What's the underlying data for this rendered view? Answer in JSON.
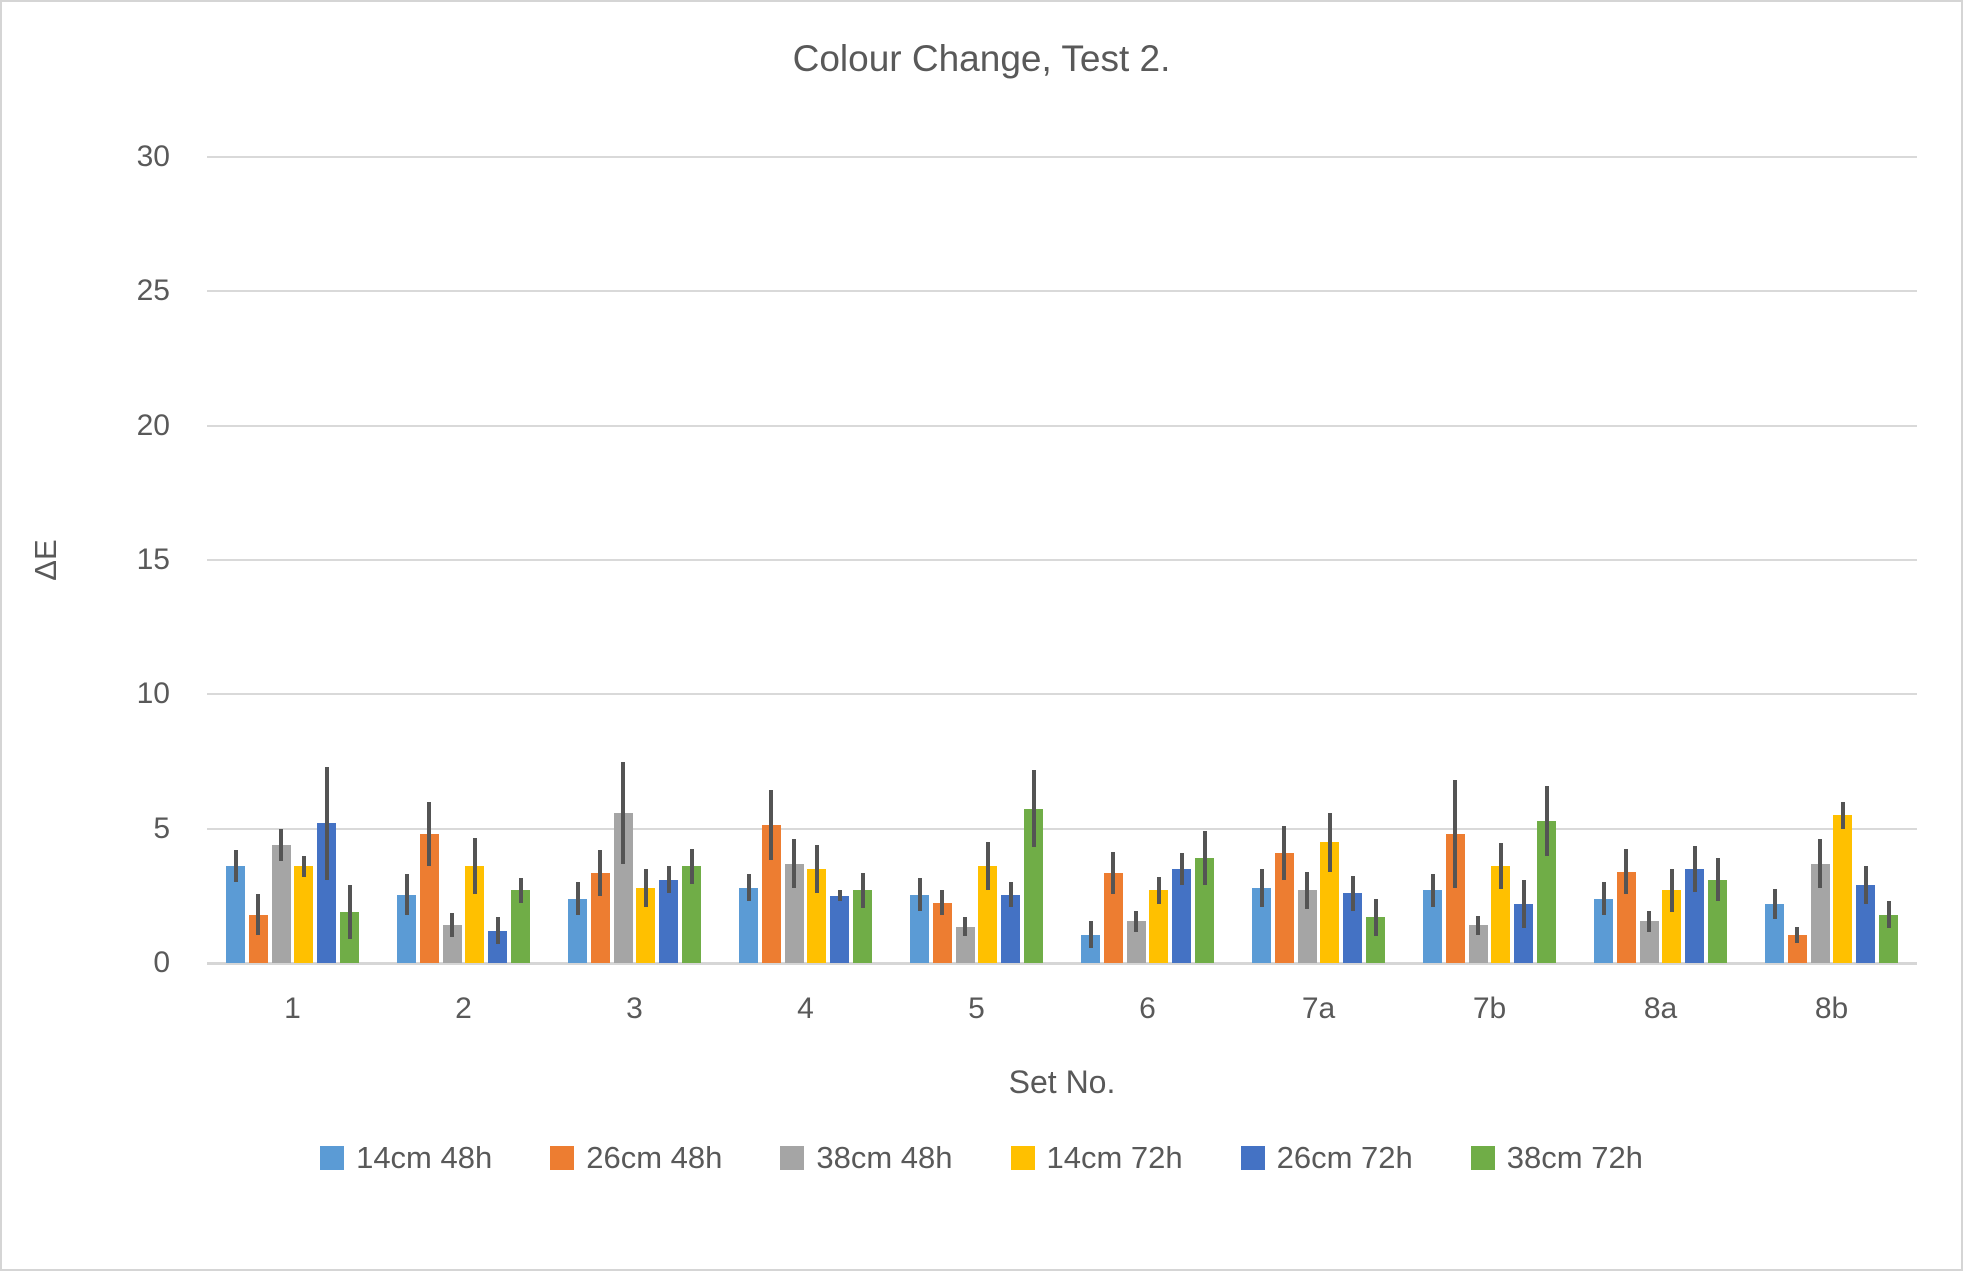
{
  "chart_data": {
    "type": "bar",
    "title": "Colour Change, Test 2.",
    "xlabel": "Set No.",
    "ylabel": "ΔE",
    "ylim": [
      0,
      30
    ],
    "yticks": [
      0,
      5,
      10,
      15,
      20,
      25,
      30
    ],
    "grid": true,
    "legend_position": "bottom",
    "error_bars": true,
    "error_bar_color": "#545454",
    "gridline_color": "#d9d9d9",
    "text_color": "#595959",
    "categories": [
      "1",
      "2",
      "3",
      "4",
      "5",
      "6",
      "7a",
      "7b",
      "8a",
      "8b"
    ],
    "series": [
      {
        "name": "14cm 48h",
        "color": "#5B9BD5",
        "values": [
          3.6,
          2.55,
          2.4,
          2.8,
          2.55,
          1.05,
          2.8,
          2.7,
          2.4,
          2.2
        ],
        "errors": [
          0.6,
          0.75,
          0.6,
          0.5,
          0.6,
          0.5,
          0.7,
          0.6,
          0.6,
          0.55
        ]
      },
      {
        "name": "26cm 48h",
        "color": "#ED7D31",
        "values": [
          1.8,
          4.8,
          3.35,
          5.15,
          2.25,
          3.35,
          4.1,
          4.8,
          3.4,
          1.05
        ],
        "errors": [
          0.75,
          1.2,
          0.85,
          1.3,
          0.45,
          0.8,
          1.0,
          2.0,
          0.85,
          0.3
        ]
      },
      {
        "name": "38cm 48h",
        "color": "#A5A5A5",
        "values": [
          4.4,
          1.4,
          5.6,
          3.7,
          1.35,
          1.55,
          2.7,
          1.4,
          1.55,
          3.7
        ],
        "errors": [
          0.6,
          0.45,
          1.9,
          0.9,
          0.35,
          0.4,
          0.7,
          0.35,
          0.4,
          0.9
        ]
      },
      {
        "name": "14cm 72h",
        "color": "#FFC000",
        "values": [
          3.6,
          3.6,
          2.8,
          3.5,
          3.6,
          2.7,
          4.5,
          3.6,
          2.7,
          5.5
        ],
        "errors": [
          0.4,
          1.05,
          0.7,
          0.9,
          0.9,
          0.5,
          1.1,
          0.85,
          0.8,
          0.5
        ]
      },
      {
        "name": "26cm 72h",
        "color": "#4472C4",
        "values": [
          5.2,
          1.2,
          3.1,
          2.5,
          2.55,
          3.5,
          2.6,
          2.2,
          3.5,
          2.9
        ],
        "errors": [
          2.1,
          0.5,
          0.5,
          0.2,
          0.45,
          0.6,
          0.65,
          0.9,
          0.85,
          0.7
        ]
      },
      {
        "name": "38cm 72h",
        "color": "#70AD47",
        "values": [
          1.9,
          2.7,
          3.6,
          2.7,
          5.75,
          3.9,
          1.7,
          5.3,
          3.1,
          1.8
        ],
        "errors": [
          1.0,
          0.45,
          0.65,
          0.65,
          1.45,
          1.0,
          0.7,
          1.3,
          0.8,
          0.5
        ]
      }
    ]
  }
}
